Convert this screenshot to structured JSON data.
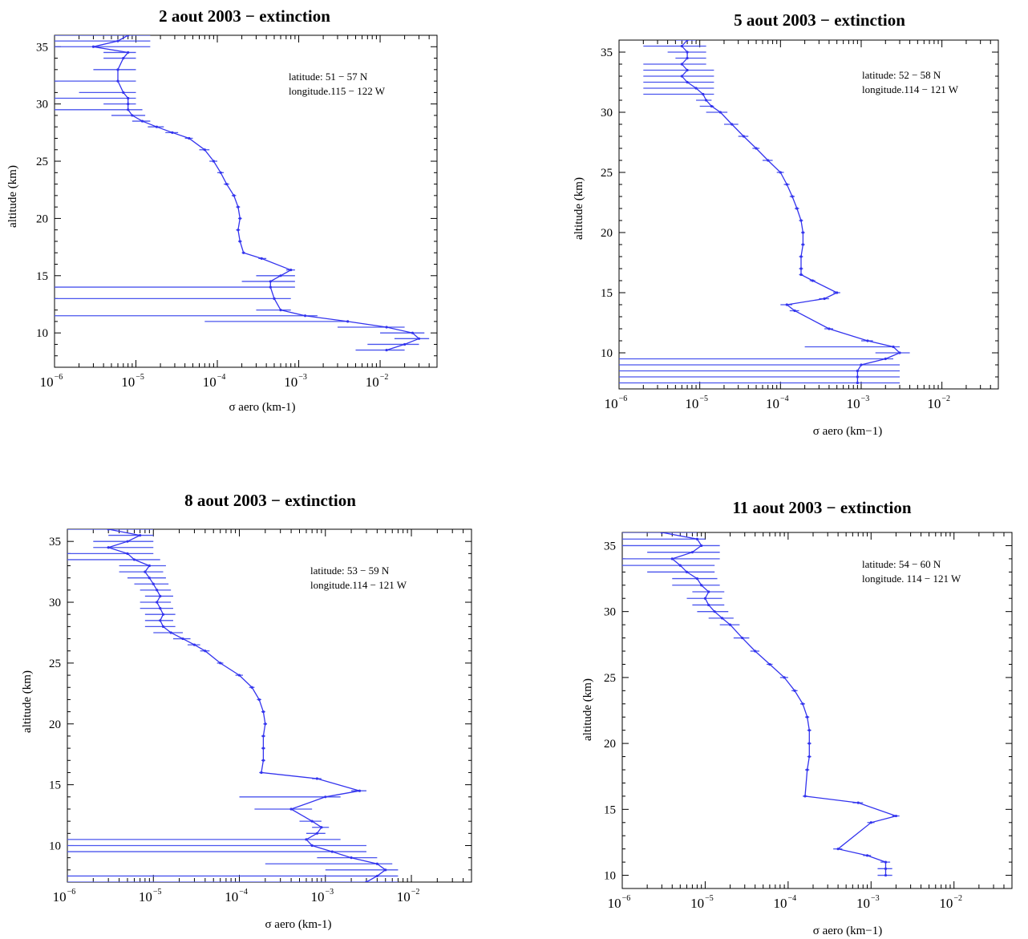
{
  "chart_data": [
    {
      "type": "line",
      "title": "2 aout 2003 − extinction",
      "xlabel": "σ aero (km-1)",
      "ylabel": "altitude (km)",
      "xscale": "log",
      "xlim": [
        1e-06,
        0.05
      ],
      "ylim": [
        7,
        36
      ],
      "xticks": [
        {
          "base": "10",
          "exp": "−6"
        },
        {
          "base": "10",
          "exp": "−5"
        },
        {
          "base": "10",
          "exp": "−4"
        },
        {
          "base": "10",
          "exp": "−3"
        },
        {
          "base": "10",
          "exp": "−2"
        }
      ],
      "yticks": [
        10,
        15,
        20,
        25,
        30,
        35
      ],
      "annotation": [
        "latitude: 51 − 57 N",
        "longitude.115 − 122 W"
      ],
      "series": [
        {
          "x": [
            8e-06,
            6e-06,
            3e-06,
            8e-06,
            7e-06,
            6e-06,
            6e-06,
            7e-06,
            8e-06,
            8e-06,
            8e-06,
            9e-06,
            1.2e-05,
            1.8e-05,
            2.8e-05,
            4.5e-05,
            7e-05,
            9e-05,
            0.00011,
            0.00013,
            0.00016,
            0.00018,
            0.00019,
            0.00018,
            0.00019,
            0.00021,
            0.00035,
            0.0008,
            0.0006,
            0.00045,
            0.00045,
            0.0005,
            0.0006,
            0.0012,
            0.004,
            0.012,
            0.025,
            0.03,
            0.02,
            0.012
          ],
          "y": [
            36,
            35.5,
            35,
            34.5,
            34,
            33,
            32,
            31,
            30.5,
            30,
            29.5,
            29,
            28.5,
            28,
            27.5,
            27,
            26,
            25,
            24,
            23,
            22,
            21,
            20,
            19,
            18,
            17,
            16.5,
            15.5,
            15,
            14.5,
            14,
            13,
            12,
            11.5,
            11,
            10.5,
            10,
            9.5,
            9,
            8.5
          ],
          "err_lo": [
            1e-06,
            1e-06,
            1e-06,
            4e-06,
            4e-06,
            3e-06,
            1e-06,
            2e-06,
            1e-06,
            4e-06,
            1e-06,
            5e-06,
            9e-06,
            1.4e-05,
            2.3e-05,
            4e-05,
            6e-05,
            8e-05,
            0.0001,
            0.00012,
            0.00015,
            0.00017,
            0.00018,
            0.00017,
            0.00018,
            0.0002,
            0.00032,
            0.0007,
            0.0003,
            0.0002,
            1e-06,
            1e-06,
            0.0003,
            1e-06,
            7e-05,
            0.003,
            0.01,
            0.015,
            0.007,
            0.005
          ],
          "err_hi": [
            1.5e-05,
            1.5e-05,
            1.5e-05,
            1e-05,
            1e-05,
            1e-05,
            1e-05,
            1e-05,
            1e-05,
            1e-05,
            1.2e-05,
            1.3e-05,
            1.5e-05,
            2.2e-05,
            3.3e-05,
            5e-05,
            8e-05,
            0.0001,
            0.00012,
            0.00014,
            0.00017,
            0.00019,
            0.0002,
            0.00019,
            0.0002,
            0.00022,
            0.0004,
            0.0009,
            0.0009,
            0.0009,
            0.0009,
            0.0008,
            0.0008,
            0.0017,
            0.004,
            0.02,
            0.035,
            0.04,
            0.03,
            0.02
          ]
        }
      ]
    },
    {
      "type": "line",
      "title": "5 aout 2003 − extinction",
      "xlabel": "σ aero (km−1)",
      "ylabel": "altitude (km)",
      "xscale": "log",
      "xlim": [
        1e-06,
        0.05
      ],
      "ylim": [
        7,
        36
      ],
      "xticks": [
        {
          "base": "10",
          "exp": "−6"
        },
        {
          "base": "10",
          "exp": "−5"
        },
        {
          "base": "10",
          "exp": "−4"
        },
        {
          "base": "10",
          "exp": "−3"
        },
        {
          "base": "10",
          "exp": "−2"
        }
      ],
      "yticks": [
        10,
        15,
        20,
        25,
        30,
        35
      ],
      "annotation": [
        "latitude: 52 − 58 N",
        "longitude.114 − 121 W"
      ],
      "series": [
        {
          "x": [
            7e-06,
            6e-06,
            7e-06,
            7e-06,
            6e-06,
            7e-06,
            6e-06,
            7e-06,
            9e-06,
            1.1e-05,
            1.2e-05,
            1.4e-05,
            1.8e-05,
            2.5e-05,
            3.5e-05,
            5e-05,
            7e-05,
            0.0001,
            0.00012,
            0.00014,
            0.00016,
            0.00018,
            0.00019,
            0.00019,
            0.00018,
            0.00018,
            0.00018,
            0.00025,
            0.0005,
            0.00035,
            0.00012,
            0.00015,
            0.0004,
            0.0012,
            0.0025,
            0.003,
            0.002,
            0.001,
            0.0009,
            0.0009,
            0.0009
          ],
          "y": [
            36,
            35.5,
            35,
            34.5,
            34,
            33.5,
            33,
            32.5,
            32,
            31.5,
            31,
            30.5,
            30,
            29,
            28,
            27,
            26,
            25,
            24,
            23,
            22,
            21,
            20,
            19,
            18,
            17,
            16.5,
            16,
            15,
            14.5,
            14,
            13.5,
            12,
            11,
            10.5,
            10,
            9.5,
            9,
            8.5,
            8,
            7.5
          ],
          "err_lo": [
            5e-06,
            2e-06,
            4e-06,
            5e-06,
            2e-06,
            2e-06,
            2e-06,
            2e-06,
            2e-06,
            2e-06,
            9e-06,
            1e-05,
            1.2e-05,
            2e-05,
            3e-05,
            4.5e-05,
            6e-05,
            9e-05,
            0.00011,
            0.00013,
            0.00015,
            0.00017,
            0.00018,
            0.00018,
            0.00017,
            0.00017,
            0.00017,
            0.00023,
            0.00045,
            0.0003,
            0.0001,
            0.00013,
            0.00035,
            0.001,
            0.0002,
            0.0015,
            1e-06,
            1e-06,
            1e-06,
            1e-06,
            1e-06
          ],
          "err_hi": [
            9e-06,
            1.2e-05,
            1.2e-05,
            1.2e-05,
            1.2e-05,
            1.5e-05,
            1.5e-05,
            1.5e-05,
            1.5e-05,
            1.5e-05,
            1.4e-05,
            1.5e-05,
            2.2e-05,
            3e-05,
            4e-05,
            5.5e-05,
            8e-05,
            0.00011,
            0.00013,
            0.00015,
            0.00017,
            0.00019,
            0.0002,
            0.0002,
            0.00019,
            0.00019,
            0.00019,
            0.00027,
            0.00055,
            0.0004,
            0.00014,
            0.00017,
            0.00045,
            0.0014,
            0.003,
            0.004,
            0.0025,
            0.003,
            0.003,
            0.003,
            0.003
          ]
        }
      ]
    },
    {
      "type": "line",
      "title": "8 aout 2003 − extinction",
      "xlabel": "σ aero (km-1)",
      "ylabel": "altitude (km)",
      "xscale": "log",
      "xlim": [
        1e-06,
        0.05
      ],
      "ylim": [
        7,
        36
      ],
      "xticks": [
        {
          "base": "10",
          "exp": "−6"
        },
        {
          "base": "10",
          "exp": "−5"
        },
        {
          "base": "10",
          "exp": "−4"
        },
        {
          "base": "10",
          "exp": "−3"
        },
        {
          "base": "10",
          "exp": "−2"
        }
      ],
      "yticks": [
        10,
        15,
        20,
        25,
        30,
        35
      ],
      "annotation": [
        "latitude: 53 − 59 N",
        "longitude.114 − 121 W"
      ],
      "series": [
        {
          "x": [
            3e-06,
            7e-06,
            5e-06,
            3e-06,
            5e-06,
            6e-06,
            9e-06,
            8e-06,
            9e-06,
            1e-05,
            1.1e-05,
            1.2e-05,
            1.1e-05,
            1.2e-05,
            1.3e-05,
            1.2e-05,
            1.3e-05,
            1.6e-05,
            2.2e-05,
            3e-05,
            4e-05,
            6e-05,
            0.0001,
            0.00014,
            0.00017,
            0.00019,
            0.0002,
            0.00019,
            0.00019,
            0.00019,
            0.00018,
            0.0008,
            0.0025,
            0.001,
            0.0004,
            0.0007,
            0.0009,
            0.0008,
            0.0006,
            0.0007,
            0.0012,
            0.002,
            0.004,
            0.005,
            0.004,
            0.003
          ],
          "y": [
            36,
            35.5,
            35,
            34.5,
            34,
            33.5,
            33,
            32.5,
            32,
            31.5,
            31,
            30.5,
            30,
            29.5,
            29,
            28.5,
            28,
            27.5,
            27,
            26.5,
            26,
            25,
            24,
            23,
            22,
            21,
            20,
            19,
            18,
            17,
            16,
            15.5,
            14.5,
            14,
            13,
            12,
            11.5,
            11,
            10.5,
            10,
            9.5,
            9,
            8.5,
            8,
            7.5,
            7
          ],
          "err_lo": [
            1e-06,
            3e-06,
            2e-06,
            2e-06,
            1e-06,
            1e-06,
            4e-06,
            4e-06,
            5e-06,
            6e-06,
            7e-06,
            8e-06,
            7e-06,
            7e-06,
            8e-06,
            8e-06,
            8e-06,
            1e-05,
            1.7e-05,
            2.5e-05,
            3.5e-05,
            5.5e-05,
            9e-05,
            0.00013,
            0.00016,
            0.00018,
            0.00019,
            0.00018,
            0.00018,
            0.00018,
            0.00017,
            0.0007,
            0.002,
            0.0001,
            0.00015,
            0.0005,
            0.0007,
            0.0006,
            1e-06,
            1e-06,
            1e-06,
            0.0008,
            0.0002,
            0.001,
            1e-06,
            1e-06
          ],
          "err_hi": [
            1e-05,
            1e-05,
            1e-05,
            1e-05,
            1e-05,
            1.2e-05,
            1.4e-05,
            1.3e-05,
            1.4e-05,
            1.5e-05,
            1.6e-05,
            1.7e-05,
            1.6e-05,
            1.7e-05,
            1.8e-05,
            1.7e-05,
            1.8e-05,
            2.2e-05,
            2.7e-05,
            3.5e-05,
            4.5e-05,
            6.5e-05,
            0.00011,
            0.00015,
            0.00018,
            0.0002,
            0.00021,
            0.0002,
            0.0002,
            0.0002,
            0.00019,
            0.0009,
            0.003,
            0.0015,
            0.0007,
            0.0009,
            0.0011,
            0.001,
            0.0015,
            0.003,
            0.003,
            0.004,
            0.006,
            0.007,
            0.007,
            0.007
          ]
        }
      ]
    },
    {
      "type": "line",
      "title": "11 aout 2003 − extinction",
      "xlabel": "σ aero (km−1)",
      "ylabel": "altitude (km)",
      "xscale": "log",
      "xlim": [
        1e-06,
        0.05
      ],
      "ylim": [
        9,
        36
      ],
      "xticks": [
        {
          "base": "10",
          "exp": "−6"
        },
        {
          "base": "10",
          "exp": "−5"
        },
        {
          "base": "10",
          "exp": "−4"
        },
        {
          "base": "10",
          "exp": "−3"
        },
        {
          "base": "10",
          "exp": "−2"
        }
      ],
      "yticks": [
        10,
        15,
        20,
        25,
        30,
        35
      ],
      "annotation": [
        "latitude: 54 − 60 N",
        "longitude. 114 − 121 W"
      ],
      "series": [
        {
          "x": [
            3e-06,
            8e-06,
            9e-06,
            7e-06,
            4e-06,
            5e-06,
            6e-06,
            8e-06,
            9e-06,
            1.1e-05,
            1e-05,
            1.1e-05,
            1.3e-05,
            1.6e-05,
            2e-05,
            2.8e-05,
            4e-05,
            6e-05,
            9e-05,
            0.00012,
            0.00015,
            0.00017,
            0.00018,
            0.00018,
            0.00018,
            0.00017,
            0.00016,
            0.0007,
            0.002,
            0.001,
            0.0004,
            0.0009,
            0.0015,
            0.0015,
            0.0015
          ],
          "y": [
            36,
            35.5,
            35,
            34.5,
            34,
            33.5,
            33,
            32.5,
            32,
            31.5,
            31,
            30.5,
            30,
            29.5,
            29,
            28,
            27,
            26,
            25,
            24,
            23,
            22,
            21,
            20,
            19,
            18,
            16,
            15.5,
            14.5,
            14,
            12,
            11.5,
            11,
            10.5,
            10
          ],
          "err_lo": [
            1e-06,
            1e-06,
            1e-06,
            2e-06,
            1e-06,
            1e-06,
            2e-06,
            4e-06,
            4e-06,
            7e-06,
            6e-06,
            7e-06,
            8e-06,
            1.1e-05,
            1.5e-05,
            2.2e-05,
            3.5e-05,
            5.5e-05,
            8e-05,
            0.00011,
            0.00014,
            0.00016,
            0.00017,
            0.00017,
            0.00017,
            0.00016,
            0.00015,
            0.0006,
            0.0018,
            0.0009,
            0.00035,
            0.0008,
            0.0013,
            0.0012,
            0.0012
          ],
          "err_hi": [
            8e-06,
            1e-05,
            1.5e-05,
            1.5e-05,
            1.5e-05,
            1.3e-05,
            1.3e-05,
            1.4e-05,
            1.5e-05,
            1.7e-05,
            1.6e-05,
            1.7e-05,
            1.9e-05,
            2.2e-05,
            2.6e-05,
            3.4e-05,
            4.5e-05,
            6.5e-05,
            0.0001,
            0.00013,
            0.00016,
            0.00018,
            0.00019,
            0.00019,
            0.00019,
            0.00018,
            0.00017,
            0.0008,
            0.0022,
            0.0011,
            0.00045,
            0.001,
            0.0017,
            0.0018,
            0.0018
          ]
        }
      ]
    }
  ]
}
